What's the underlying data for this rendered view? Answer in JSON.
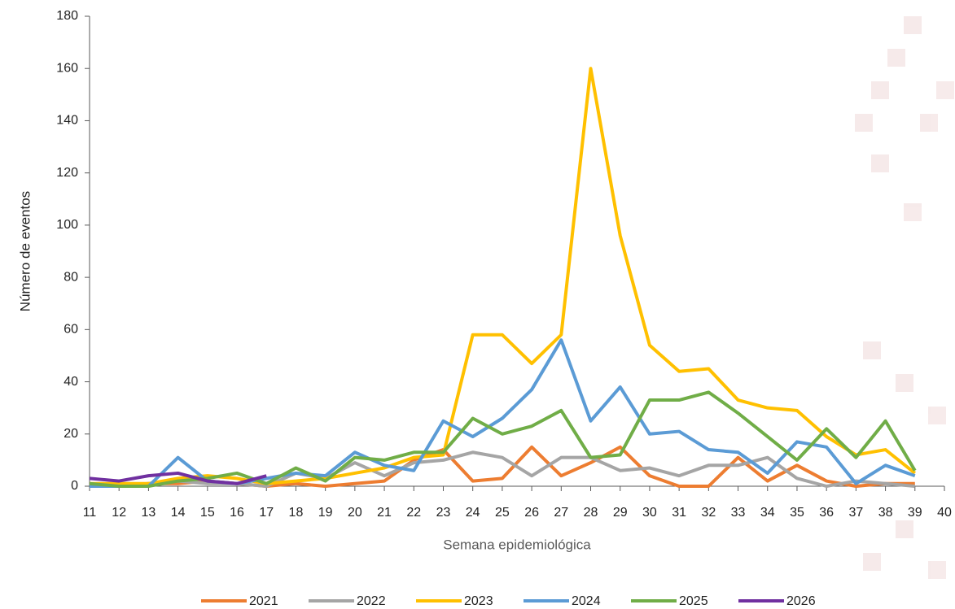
{
  "chart_data": {
    "type": "line",
    "x_label": "Semana epidemiológica",
    "y_label": "Número de eventos",
    "x": [
      11,
      12,
      13,
      14,
      15,
      16,
      17,
      18,
      19,
      20,
      21,
      22,
      23,
      24,
      25,
      26,
      27,
      28,
      29,
      30,
      31,
      32,
      33,
      34,
      35,
      36,
      37,
      38,
      39
    ],
    "xlim": [
      11,
      40
    ],
    "xticks": [
      11,
      12,
      13,
      14,
      15,
      16,
      17,
      18,
      19,
      20,
      21,
      22,
      23,
      24,
      25,
      26,
      27,
      28,
      29,
      30,
      31,
      32,
      33,
      34,
      35,
      36,
      37,
      38,
      39,
      40
    ],
    "ylim": [
      0,
      180
    ],
    "yticks": [
      0,
      20,
      40,
      60,
      80,
      100,
      120,
      140,
      160,
      180
    ],
    "series": [
      {
        "name": "2021",
        "color": "#ed7d31",
        "values": [
          0,
          0,
          1,
          1,
          2,
          1,
          0,
          1,
          0,
          1,
          2,
          10,
          14,
          2,
          3,
          15,
          4,
          9,
          15,
          4,
          0,
          0,
          11,
          2,
          8,
          2,
          0,
          1,
          1
        ]
      },
      {
        "name": "2022",
        "color": "#a5a5a5",
        "values": [
          0,
          0,
          1,
          2,
          1,
          1,
          0,
          5,
          3,
          9,
          4,
          9,
          10,
          13,
          11,
          4,
          11,
          11,
          6,
          7,
          4,
          8,
          8,
          11,
          3,
          0,
          2,
          1,
          0
        ]
      },
      {
        "name": "2023",
        "color": "#ffc000",
        "values": [
          1,
          1,
          1,
          3,
          4,
          3,
          1,
          2,
          3,
          5,
          7,
          11,
          12,
          58,
          58,
          47,
          58,
          160,
          96,
          54,
          44,
          45,
          33,
          30,
          29,
          19,
          12,
          14,
          5
        ]
      },
      {
        "name": "2024",
        "color": "#5b9bd5",
        "values": [
          0,
          0,
          0,
          11,
          2,
          1,
          3,
          5,
          4,
          13,
          8,
          6,
          25,
          19,
          26,
          37,
          56,
          25,
          38,
          20,
          21,
          14,
          13,
          5,
          17,
          15,
          1,
          8,
          4
        ]
      },
      {
        "name": "2025",
        "color": "#70ad47",
        "values": [
          1,
          0,
          0,
          2,
          3,
          5,
          1,
          7,
          2,
          11,
          10,
          13,
          13,
          26,
          20,
          23,
          29,
          11,
          12,
          33,
          33,
          36,
          28,
          19,
          10,
          22,
          11,
          25,
          6
        ]
      },
      {
        "name": "2026",
        "color": "#7030a0",
        "values": [
          3,
          2,
          4,
          5,
          2,
          1,
          4,
          null,
          null,
          null,
          null,
          null,
          null,
          null,
          null,
          null,
          null,
          null,
          null,
          null,
          null,
          null,
          null,
          null,
          null,
          null,
          null,
          null,
          null
        ]
      }
    ]
  }
}
